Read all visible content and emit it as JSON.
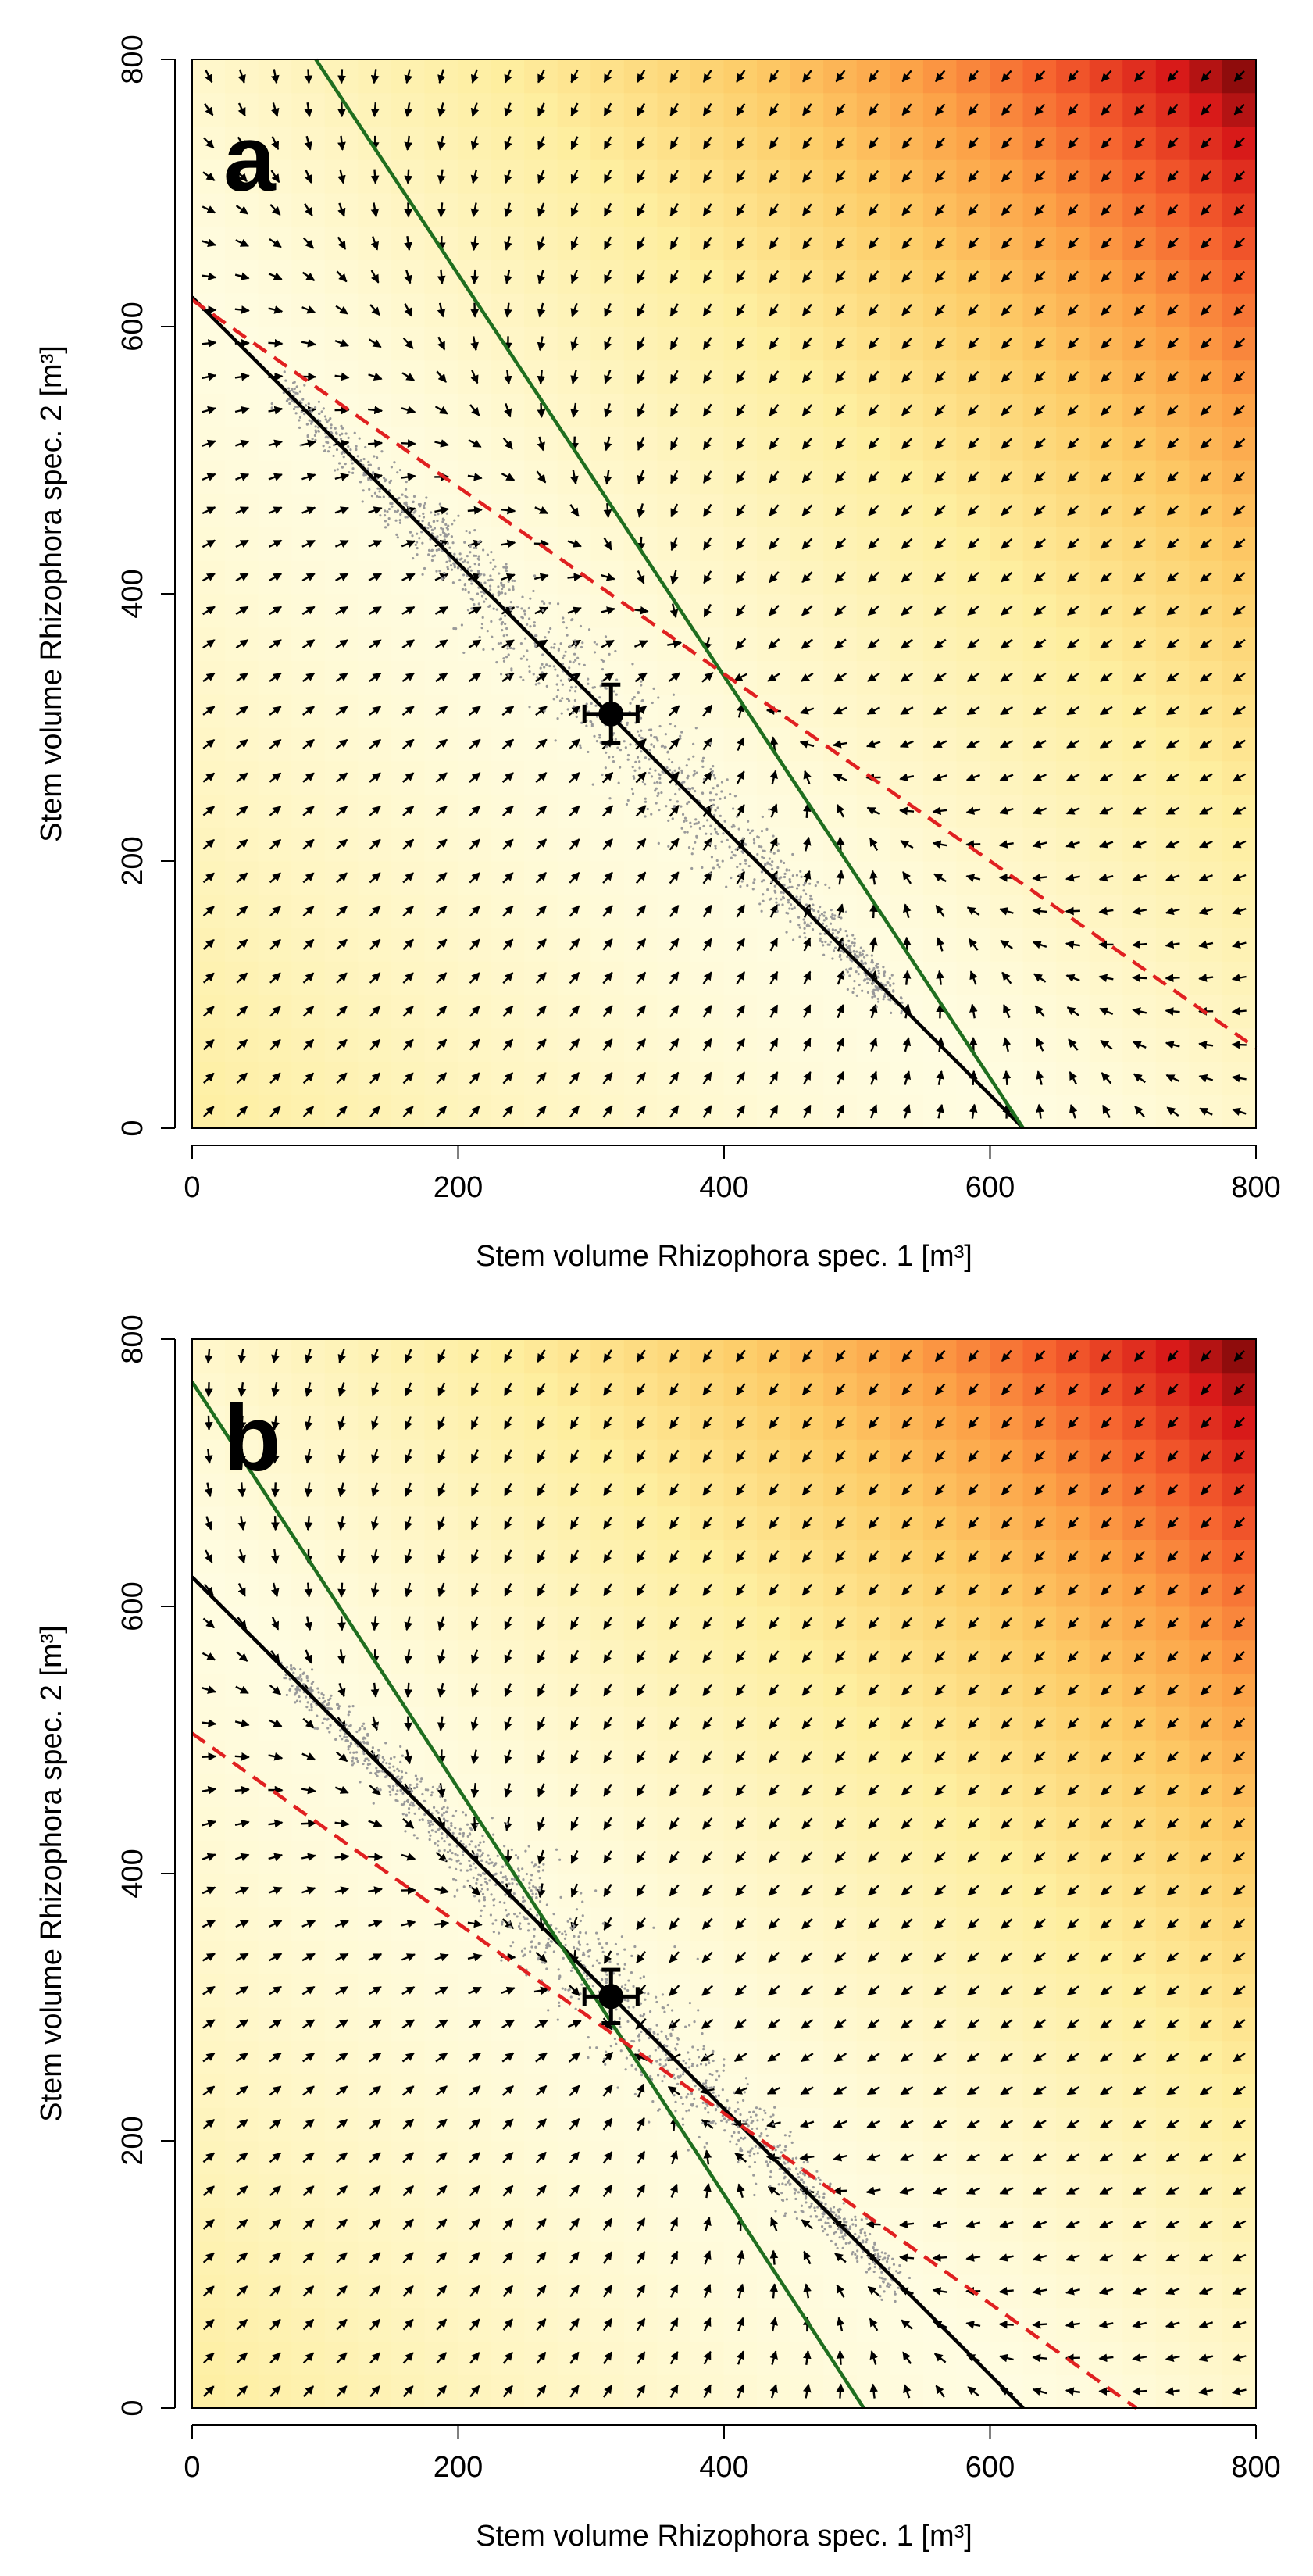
{
  "chart_data": [
    {
      "type": "scatter",
      "panel_label": "a",
      "xlabel": "Stem volume Rhizophora spec. 1 [m³]",
      "ylabel": "Stem volume Rhizophora spec. 2 [m³]",
      "xlim": [
        0,
        800
      ],
      "ylim": [
        0,
        800
      ],
      "x_ticks": [
        "0",
        "200",
        "400",
        "600",
        "800"
      ],
      "y_ticks": [
        "0",
        "200",
        "400",
        "600",
        "800"
      ],
      "background": "heatmap of total stem volume (pale yellow to dark red toward upper-right)",
      "lines": [
        {
          "name": "black-isocline",
          "color": "#000000",
          "style": "solid",
          "x": [
            0,
            625
          ],
          "y": [
            622,
            0
          ]
        },
        {
          "name": "green-nullcline",
          "color": "#1f6e1f",
          "style": "solid",
          "x": [
            93,
            625
          ],
          "y": [
            800,
            0
          ]
        },
        {
          "name": "red-nullcline",
          "color": "#e02020",
          "style": "dashed",
          "x": [
            0,
            800
          ],
          "y": [
            620,
            60
          ]
        }
      ],
      "equilibrium": {
        "x": 315,
        "y": 310,
        "x_err": 20,
        "y_err": 22
      },
      "scatter_cloud": {
        "from_x": 70,
        "to_x": 530,
        "line_slope": -0.995,
        "line_intercept": 622,
        "spread": 12
      }
    },
    {
      "type": "scatter",
      "panel_label": "b",
      "xlabel": "Stem volume Rhizophora spec. 1 [m³]",
      "ylabel": "Stem volume Rhizophora spec. 2 [m³]",
      "xlim": [
        0,
        800
      ],
      "ylim": [
        0,
        800
      ],
      "x_ticks": [
        "0",
        "200",
        "400",
        "600",
        "800"
      ],
      "y_ticks": [
        "0",
        "200",
        "400",
        "600",
        "800"
      ],
      "background": "heatmap of total stem volume (pale yellow to dark red toward upper-right)",
      "lines": [
        {
          "name": "black-isocline",
          "color": "#000000",
          "style": "solid",
          "x": [
            0,
            625
          ],
          "y": [
            622,
            0
          ]
        },
        {
          "name": "green-nullcline",
          "color": "#1f6e1f",
          "style": "solid",
          "x": [
            0,
            505
          ],
          "y": [
            768,
            0
          ]
        },
        {
          "name": "red-nullcline",
          "color": "#e02020",
          "style": "dashed",
          "x": [
            0,
            710
          ],
          "y": [
            505,
            0
          ]
        }
      ],
      "equilibrium": {
        "x": 315,
        "y": 308,
        "x_err": 20,
        "y_err": 20
      },
      "scatter_cloud": {
        "from_x": 70,
        "to_x": 530,
        "line_slope": -0.995,
        "line_intercept": 622,
        "spread": 12
      }
    }
  ]
}
